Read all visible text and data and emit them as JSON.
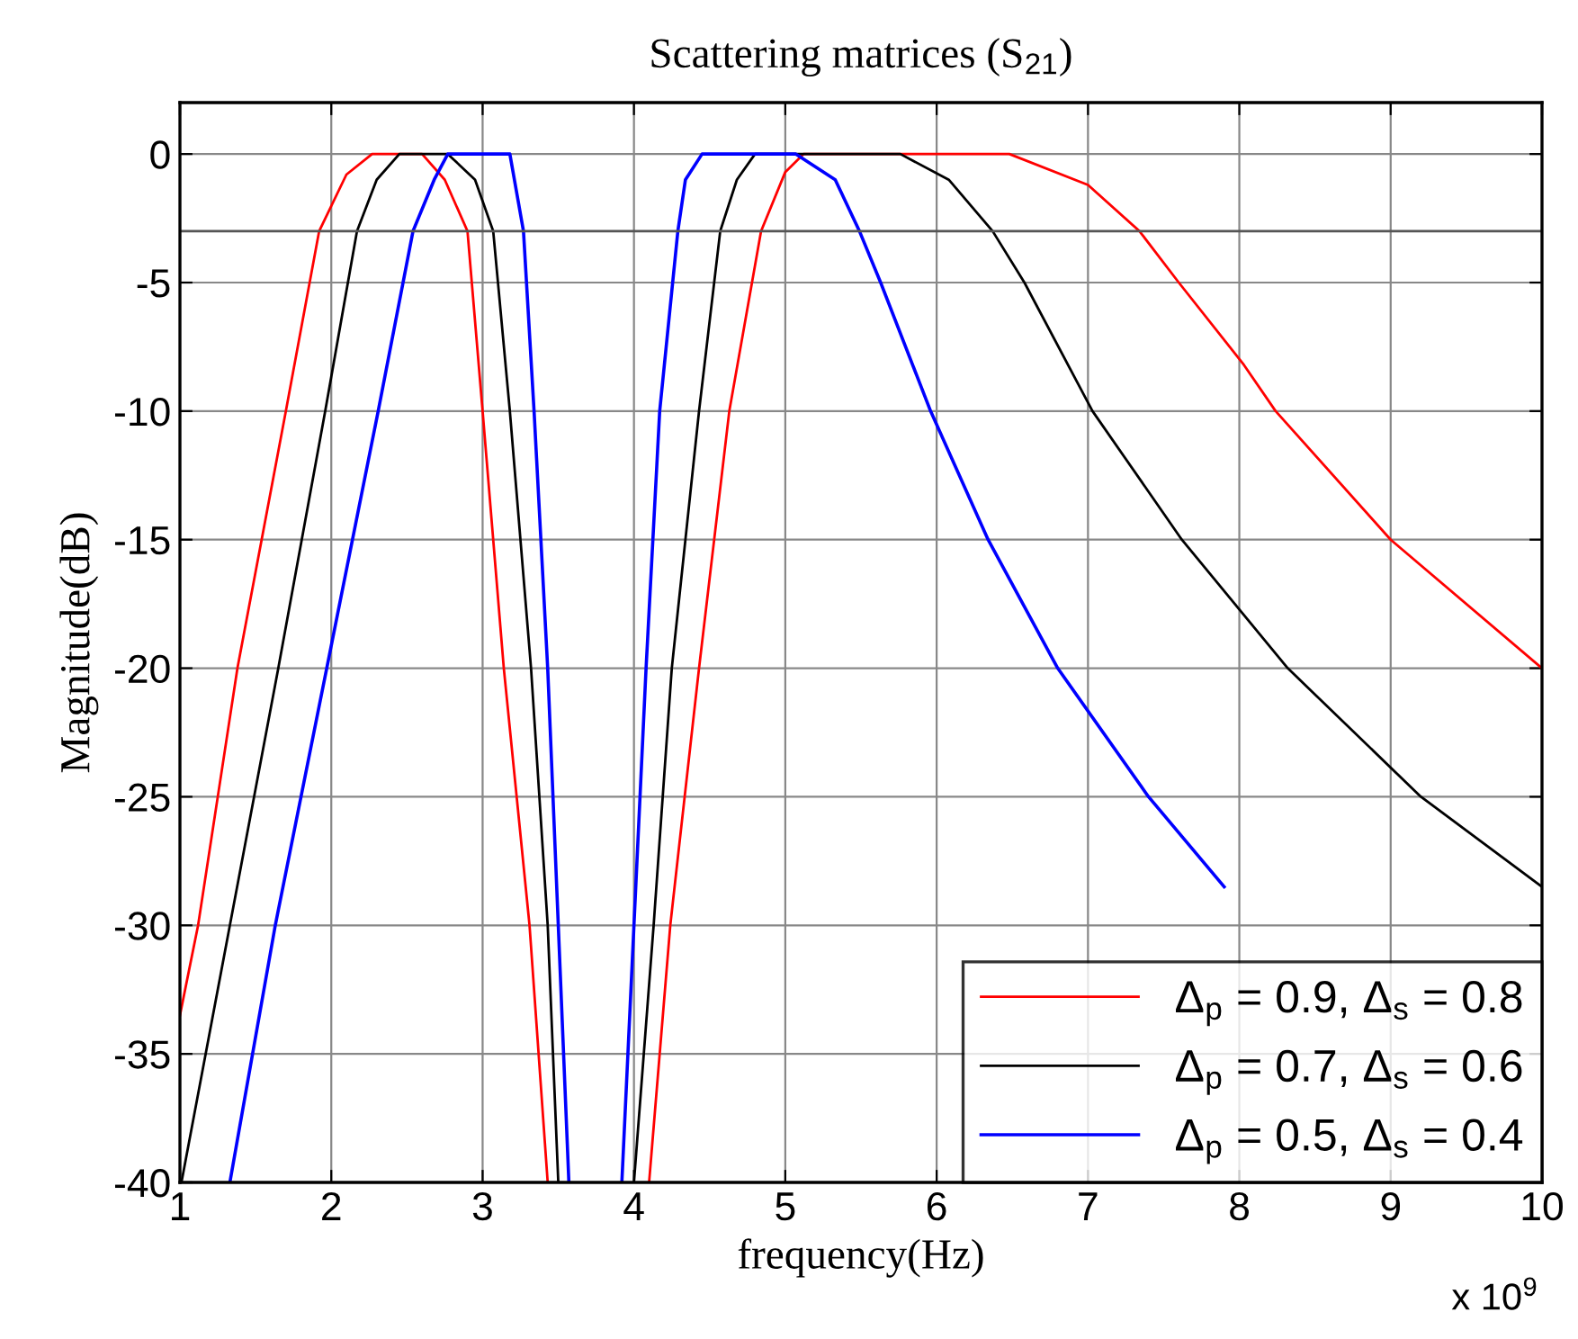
{
  "chart_data": {
    "type": "line",
    "title": "Scattering matrices (S$_{21}$)",
    "xlabel": "frequency(Hz)",
    "ylabel": "Magnitude(dB)",
    "annotations": [
      "x 10$^{9}$"
    ],
    "xlim": [
      1,
      10
    ],
    "xticks": [
      1,
      2,
      3,
      4,
      5,
      6,
      7,
      8,
      9,
      10
    ],
    "ylim": [
      -40,
      2
    ],
    "yticks": [
      -40,
      -35,
      -30,
      -25,
      -20,
      -15,
      -10,
      -5,
      0
    ],
    "grid": true,
    "legend": "bottom right",
    "ref_lines": [
      {
        "axis": "y",
        "value": -3,
        "color": "#555555"
      }
    ],
    "series": [
      {
        "name": "Δ$_{p}$ = 0.9, Δ$_{s}$ = 0.8",
        "color": "#ff0000",
        "x": [
          1.0,
          1.12,
          1.38,
          1.7,
          1.92,
          2.1,
          2.27,
          2.6,
          2.75,
          2.9,
          3.0,
          3.14,
          3.31,
          3.43,
          3.8,
          4.1,
          4.24,
          4.43,
          4.63,
          4.84,
          5.0,
          5.12,
          6.48,
          7.0,
          7.34,
          7.6,
          8.03,
          8.24,
          9.0,
          10.0
        ],
        "values": [
          -33.5,
          -30,
          -20,
          -10,
          -3,
          -0.8,
          0,
          0,
          -1,
          -3,
          -10,
          -20,
          -30,
          -40,
          null,
          -40,
          -30,
          -20,
          -10,
          -3,
          -0.7,
          0,
          0,
          -1.2,
          -3,
          -5,
          -8.2,
          -10,
          -15,
          -20
        ]
      },
      {
        "name": "Δ$_{p}$ = 0.7, Δ$_{s}$ = 0.6",
        "color": "#000000",
        "x": [
          1.01,
          1.33,
          1.65,
          1.96,
          2.17,
          2.3,
          2.45,
          2.77,
          2.95,
          3.07,
          3.18,
          3.32,
          3.43,
          3.5,
          3.8,
          4.0,
          4.13,
          4.25,
          4.43,
          4.57,
          4.68,
          4.8,
          5.76,
          6.08,
          6.37,
          6.58,
          7.03,
          7.62,
          8.32,
          9.2,
          10.0
        ],
        "values": [
          -40,
          -30,
          -20,
          -10,
          -3,
          -1,
          0,
          0,
          -1,
          -3,
          -10,
          -20,
          -30,
          -40,
          null,
          -40,
          -30,
          -20,
          -10,
          -3,
          -1,
          0,
          0,
          -1,
          -3,
          -5,
          -10,
          -15,
          -20,
          -25,
          -28.5
        ]
      },
      {
        "name": "Δ$_{p}$ = 0.5, Δ$_{s}$ = 0.4",
        "color": "#0000ff",
        "x": [
          1.33,
          1.63,
          1.97,
          2.31,
          2.54,
          2.68,
          2.77,
          3.18,
          3.27,
          3.34,
          3.43,
          3.5,
          3.57,
          3.75,
          3.92,
          4.0,
          4.08,
          4.17,
          4.29,
          4.34,
          4.45,
          5.07,
          5.33,
          5.49,
          5.63,
          5.96,
          6.34,
          6.8,
          7.4,
          7.9
        ],
        "values": [
          -40,
          -30,
          -20,
          -10,
          -3,
          -1,
          0,
          0,
          -3,
          -10,
          -20,
          -30,
          -40,
          null,
          -40,
          -30,
          -20,
          -10,
          -3,
          -1,
          0,
          0,
          -1,
          -3,
          -5,
          -10,
          -15,
          -20,
          -25,
          -28.5
        ]
      }
    ]
  }
}
